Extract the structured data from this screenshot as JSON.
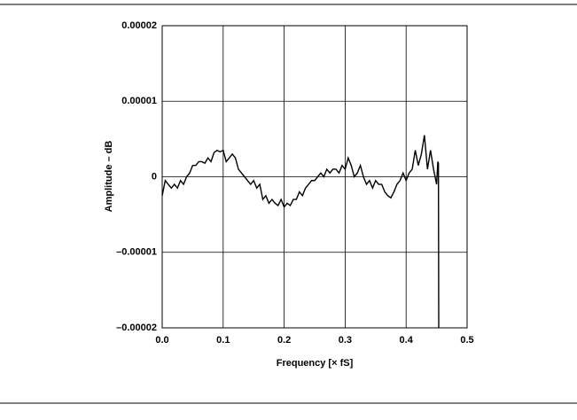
{
  "chart_data": {
    "type": "line",
    "xlabel": "Frequency [× fS]",
    "ylabel": "Amplitude – dB",
    "xlim": [
      0,
      0.5
    ],
    "ylim": [
      -2e-05,
      2e-05
    ],
    "xticks": [
      {
        "value": 0,
        "label": "0.0"
      },
      0.1,
      0.2,
      0.3,
      0.4,
      0.5
    ],
    "yticks": [
      {
        "value": -2e-05,
        "label": "–0.00002"
      },
      {
        "value": -1e-05,
        "label": "–0.00001"
      },
      0,
      1e-05,
      2e-05
    ],
    "grid": true,
    "series": [
      {
        "color": "#000000",
        "x": [
          0,
          0.005,
          0.01,
          0.015,
          0.02,
          0.025,
          0.03,
          0.035,
          0.04,
          0.045,
          0.05,
          0.055,
          0.06,
          0.065,
          0.07,
          0.075,
          0.08,
          0.085,
          0.09,
          0.095,
          0.1,
          0.105,
          0.11,
          0.115,
          0.12,
          0.125,
          0.13,
          0.135,
          0.14,
          0.145,
          0.15,
          0.155,
          0.16,
          0.165,
          0.17,
          0.175,
          0.18,
          0.185,
          0.19,
          0.195,
          0.2,
          0.205,
          0.21,
          0.215,
          0.22,
          0.225,
          0.23,
          0.235,
          0.24,
          0.245,
          0.25,
          0.255,
          0.26,
          0.265,
          0.27,
          0.275,
          0.28,
          0.285,
          0.29,
          0.295,
          0.3,
          0.305,
          0.31,
          0.315,
          0.32,
          0.325,
          0.33,
          0.335,
          0.34,
          0.345,
          0.35,
          0.355,
          0.36,
          0.365,
          0.37,
          0.375,
          0.38,
          0.385,
          0.39,
          0.395,
          0.4,
          0.405,
          0.41,
          0.415,
          0.42,
          0.425,
          0.43,
          0.435,
          0.44,
          0.445,
          0.45,
          0.452,
          0.453,
          0.4535
        ],
        "values": [
          -2.5e-06,
          -5e-07,
          -1e-06,
          -1.5e-06,
          -1e-06,
          -1.5e-06,
          -5e-07,
          -1e-06,
          0,
          5e-07,
          1.5e-06,
          1.5e-06,
          2e-06,
          2e-06,
          1.8e-06,
          2.5e-06,
          2e-06,
          3.2e-06,
          3.5e-06,
          3.3e-06,
          3.5e-06,
          2e-06,
          2.5e-06,
          3e-06,
          2.5e-06,
          1e-06,
          5e-07,
          0,
          -5e-07,
          -1e-06,
          -5e-07,
          -1.5e-06,
          -1e-06,
          -3e-06,
          -2.5e-06,
          -3.5e-06,
          -3e-06,
          -3.5e-06,
          -3.8e-06,
          -3e-06,
          -4e-06,
          -3.5e-06,
          -3.8e-06,
          -3e-06,
          -3e-06,
          -2e-06,
          -2.5e-06,
          -1.5e-06,
          -1e-06,
          -5e-07,
          -5e-07,
          0,
          5e-07,
          0,
          1e-06,
          5e-07,
          1e-06,
          1e-06,
          5e-07,
          1.5e-06,
          1e-06,
          2.5e-06,
          1.5e-06,
          0,
          5e-07,
          1.5e-06,
          0,
          -1e-06,
          -5e-07,
          -1.5e-06,
          -5e-07,
          -1e-06,
          -1e-06,
          -2e-06,
          -2.5e-06,
          -2.8e-06,
          -2e-06,
          -1e-06,
          -5e-07,
          5e-07,
          -5e-07,
          5e-07,
          1e-06,
          3.5e-06,
          1.5e-06,
          3e-06,
          5.5e-06,
          1e-06,
          3.5e-06,
          1e-06,
          -1e-06,
          2e-06,
          1.8e-06,
          -2e-05
        ]
      }
    ]
  }
}
